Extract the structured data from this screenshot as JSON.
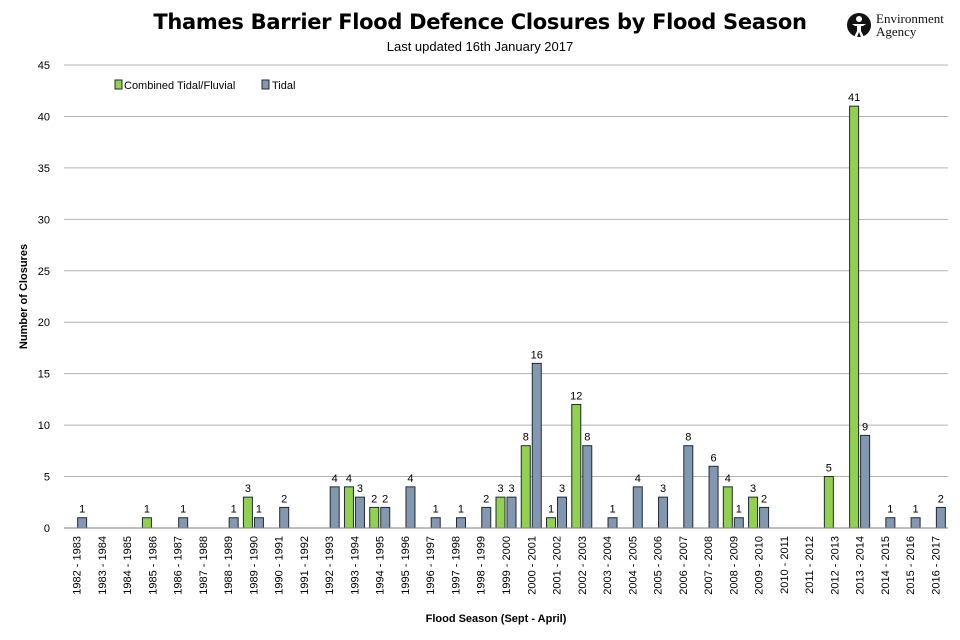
{
  "header": {
    "title": "Thames Barrier Flood Defence Closures by Flood Season",
    "subtitle": "Last updated 16th January 2017",
    "logo_line1": "Environment",
    "logo_line2": "Agency"
  },
  "colors": {
    "combined": "#92d050",
    "tidal": "#8497b0",
    "bar_stroke": "#1f2a36",
    "grid": "#b3b3b3"
  },
  "chart_data": {
    "type": "bar",
    "title": "Thames Barrier Flood Defence Closures by Flood Season",
    "subtitle": "Last updated 16th January 2017",
    "xlabel": "Flood Season (Sept - April)",
    "ylabel": "Number of Closures",
    "ylim": [
      0,
      45
    ],
    "yticks": [
      0,
      5,
      10,
      15,
      20,
      25,
      30,
      35,
      40,
      45
    ],
    "grid": true,
    "legend_position": "top-left",
    "categories": [
      "1982 - 1983",
      "1983 - 1984",
      "1984 - 1985",
      "1985 - 1986",
      "1986 - 1987",
      "1987 - 1988",
      "1988 - 1989",
      "1989 - 1990",
      "1990 - 1991",
      "1991 - 1992",
      "1992 - 1993",
      "1993 - 1994",
      "1994 - 1995",
      "1995 - 1996",
      "1996 - 1997",
      "1997 - 1998",
      "1998 - 1999",
      "1999 - 2000",
      "2000 - 2001",
      "2001 - 2002",
      "2002 - 2003",
      "2003 - 2004",
      "2004 - 2005",
      "2005 - 2006",
      "2006 - 2007",
      "2007 - 2008",
      "2008 - 2009",
      "2009 - 2010",
      "2010 - 2011",
      "2011 - 2012",
      "2012 - 2013",
      "2013 - 2014",
      "2014 - 2015",
      "2015 - 2016",
      "2016 - 2017"
    ],
    "series": [
      {
        "name": "Combined Tidal/Fluvial",
        "values": [
          0,
          0,
          0,
          1,
          0,
          0,
          0,
          3,
          0,
          0,
          0,
          4,
          2,
          0,
          0,
          0,
          0,
          3,
          8,
          1,
          12,
          0,
          0,
          0,
          0,
          0,
          4,
          3,
          0,
          0,
          5,
          41,
          0,
          0,
          0
        ]
      },
      {
        "name": "Tidal",
        "values": [
          1,
          0,
          0,
          0,
          1,
          0,
          1,
          1,
          2,
          0,
          4,
          3,
          2,
          4,
          1,
          1,
          2,
          3,
          16,
          3,
          8,
          1,
          4,
          3,
          8,
          6,
          1,
          2,
          0,
          0,
          0,
          9,
          1,
          1,
          2
        ]
      }
    ]
  }
}
